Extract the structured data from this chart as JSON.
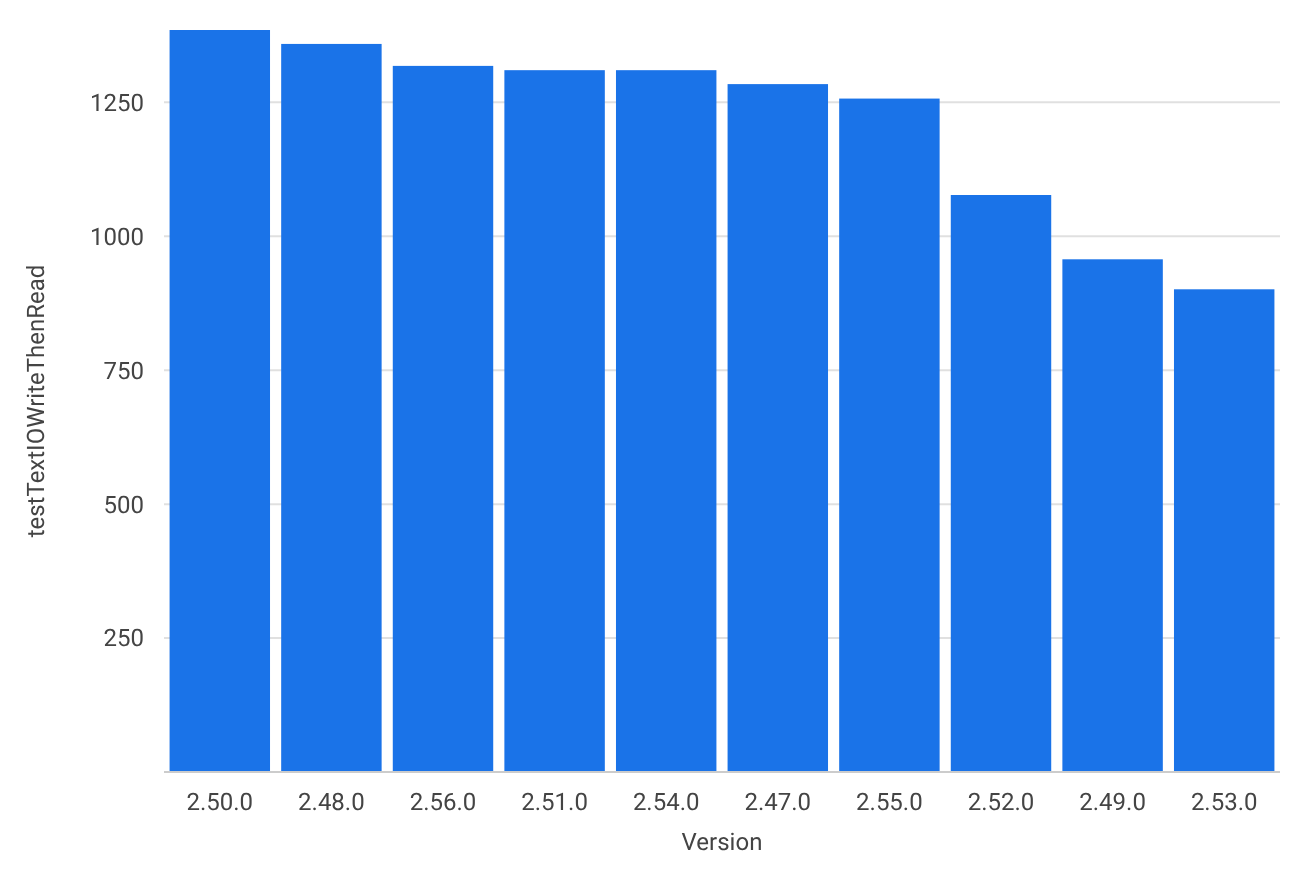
{
  "chart_data": {
    "type": "bar",
    "xlabel": "Version",
    "ylabel": "testTextIOWriteThenRead",
    "categories": [
      "2.50.0",
      "2.48.0",
      "2.56.0",
      "2.51.0",
      "2.54.0",
      "2.47.0",
      "2.55.0",
      "2.52.0",
      "2.49.0",
      "2.53.0"
    ],
    "values": [
      1385,
      1359,
      1318,
      1310,
      1310,
      1284,
      1257,
      1077,
      957,
      901
    ],
    "color": "#1a73e8",
    "ylim": [
      0,
      1385
    ],
    "yticks": [
      250,
      500,
      750,
      1000,
      1250
    ],
    "grid": "y"
  }
}
